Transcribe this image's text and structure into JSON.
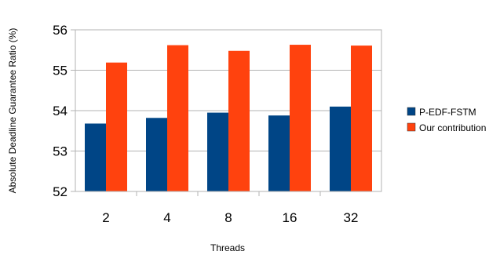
{
  "chart_data": {
    "type": "bar",
    "categories": [
      "2",
      "4",
      "8",
      "16",
      "32"
    ],
    "series": [
      {
        "name": "P-EDF-FSTM",
        "color": "#004586",
        "values": [
          53.68,
          53.82,
          53.95,
          53.88,
          54.1
        ]
      },
      {
        "name": "Our contribution",
        "color": "#ff420e",
        "values": [
          55.19,
          55.62,
          55.48,
          55.63,
          55.61
        ]
      }
    ],
    "xlabel": "Threads",
    "ylabel": "Absolute Deadline Guarantee Ratio (%)",
    "ylim": [
      52,
      56
    ],
    "yticks": [
      52,
      53,
      54,
      55,
      56
    ],
    "grid": true,
    "legend": "right"
  }
}
